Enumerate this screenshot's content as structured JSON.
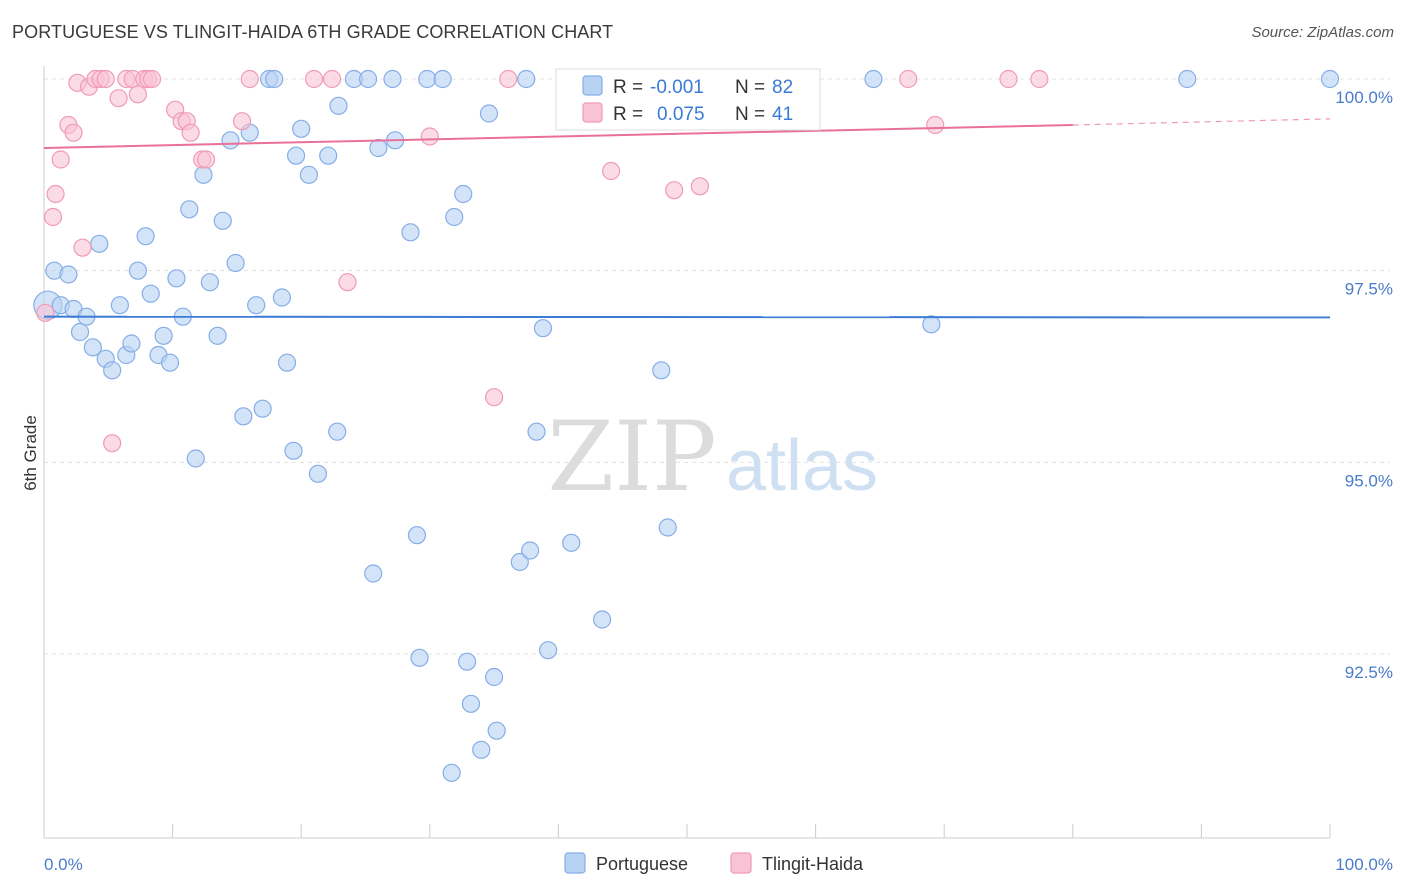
{
  "header": {
    "title": "PORTUGUESE VS TLINGIT-HAIDA 6TH GRADE CORRELATION CHART",
    "source": "Source: ZipAtlas.com"
  },
  "watermark": {
    "zip": "ZIP",
    "atlas": "atlas"
  },
  "colors": {
    "blue_fill": "#b8d2f3",
    "blue_stroke": "#86ade6",
    "blue_line": "#3a7bd5",
    "pink_fill": "#f8c3d4",
    "pink_stroke": "#f09ab6",
    "pink_line": "#e8709a",
    "grid": "#e3e3e3",
    "axis_label": "#4a7cc9"
  },
  "legend": {
    "rows": [
      {
        "r_label": "R =",
        "r_value": "-0.001",
        "n_label": "N =",
        "n_value": "82"
      },
      {
        "r_label": "R =",
        "r_value": "0.075",
        "n_label": "N =",
        "n_value": "41"
      }
    ]
  },
  "chart_data": {
    "type": "scatter",
    "title": "PORTUGUESE VS TLINGIT-HAIDA 6TH GRADE CORRELATION CHART",
    "ylabel": "6th Grade",
    "xlabel": "",
    "xlim": [
      0,
      100
    ],
    "ylim": [
      90.2,
      100.8
    ],
    "x_tick_labels": [
      "0.0%",
      "100.0%"
    ],
    "y_ticks": [
      {
        "value": 100.0,
        "label": "100.0%"
      },
      {
        "value": 97.5,
        "label": "97.5%"
      },
      {
        "value": 95.0,
        "label": "95.0%"
      },
      {
        "value": 92.5,
        "label": "92.5%"
      }
    ],
    "grid": true,
    "legend_position": "top-center",
    "series": [
      {
        "name": "Portuguese",
        "color": "#b8d2f3",
        "r": -0.001,
        "n": 82,
        "trend": {
          "x": [
            0,
            100
          ],
          "y": [
            96.9,
            96.89
          ]
        },
        "points": [
          [
            0.3,
            97.05
          ],
          [
            0.8,
            97.5
          ],
          [
            1.3,
            97.05
          ],
          [
            1.9,
            97.45
          ],
          [
            2.3,
            97.0
          ],
          [
            2.8,
            96.7
          ],
          [
            3.3,
            96.9
          ],
          [
            3.8,
            96.5
          ],
          [
            4.3,
            97.85
          ],
          [
            4.8,
            96.35
          ],
          [
            5.3,
            96.2
          ],
          [
            5.9,
            97.05
          ],
          [
            6.4,
            96.4
          ],
          [
            6.8,
            96.55
          ],
          [
            7.3,
            97.5
          ],
          [
            7.9,
            97.95
          ],
          [
            8.3,
            97.2
          ],
          [
            8.9,
            96.4
          ],
          [
            9.3,
            96.65
          ],
          [
            9.8,
            96.3
          ],
          [
            10.3,
            97.4
          ],
          [
            10.8,
            96.9
          ],
          [
            11.3,
            98.3
          ],
          [
            11.8,
            95.05
          ],
          [
            12.4,
            98.75
          ],
          [
            12.9,
            97.35
          ],
          [
            13.5,
            96.65
          ],
          [
            13.9,
            98.15
          ],
          [
            14.5,
            99.2
          ],
          [
            14.9,
            97.6
          ],
          [
            15.5,
            95.6
          ],
          [
            16.0,
            99.3
          ],
          [
            16.5,
            97.05
          ],
          [
            17.0,
            95.7
          ],
          [
            17.5,
            100.0
          ],
          [
            17.9,
            100.0
          ],
          [
            18.5,
            97.15
          ],
          [
            18.9,
            96.3
          ],
          [
            19.4,
            95.15
          ],
          [
            19.6,
            99.0
          ],
          [
            20.0,
            99.35
          ],
          [
            20.6,
            98.75
          ],
          [
            21.3,
            94.85
          ],
          [
            22.1,
            99.0
          ],
          [
            22.8,
            95.4
          ],
          [
            22.9,
            99.65
          ],
          [
            24.1,
            100.0
          ],
          [
            25.2,
            100.0
          ],
          [
            25.6,
            93.55
          ],
          [
            26.0,
            99.1
          ],
          [
            27.1,
            100.0
          ],
          [
            27.3,
            99.2
          ],
          [
            28.5,
            98.0
          ],
          [
            29.0,
            94.05
          ],
          [
            29.2,
            92.45
          ],
          [
            29.8,
            100.0
          ],
          [
            31.0,
            100.0
          ],
          [
            31.7,
            90.95
          ],
          [
            31.9,
            98.2
          ],
          [
            32.6,
            98.5
          ],
          [
            32.9,
            92.4
          ],
          [
            33.2,
            91.85
          ],
          [
            34.0,
            91.25
          ],
          [
            34.6,
            99.55
          ],
          [
            35.0,
            92.2
          ],
          [
            35.2,
            91.5
          ],
          [
            37.0,
            93.7
          ],
          [
            37.5,
            100.0
          ],
          [
            37.8,
            93.85
          ],
          [
            38.3,
            95.4
          ],
          [
            38.8,
            96.75
          ],
          [
            39.2,
            92.55
          ],
          [
            41.0,
            93.95
          ],
          [
            43.4,
            92.95
          ],
          [
            46.0,
            100.0
          ],
          [
            48.0,
            96.2
          ],
          [
            48.5,
            94.15
          ],
          [
            51.0,
            100.0
          ],
          [
            64.5,
            100.0
          ],
          [
            69.0,
            96.8
          ],
          [
            88.9,
            100.0
          ],
          [
            100.0,
            100.0
          ]
        ]
      },
      {
        "name": "Tlingit-Haida",
        "color": "#f8c3d4",
        "r": 0.075,
        "n": 41,
        "trend": {
          "x": [
            0,
            80
          ],
          "y": [
            99.1,
            99.4
          ],
          "dashed_to": [
            100,
            99.48
          ]
        },
        "points": [
          [
            0.1,
            96.95
          ],
          [
            0.7,
            98.2
          ],
          [
            0.9,
            98.5
          ],
          [
            1.3,
            98.95
          ],
          [
            1.9,
            99.4
          ],
          [
            2.3,
            99.3
          ],
          [
            2.6,
            99.95
          ],
          [
            3.0,
            97.8
          ],
          [
            3.5,
            99.9
          ],
          [
            4.0,
            100.0
          ],
          [
            4.4,
            100.0
          ],
          [
            4.8,
            100.0
          ],
          [
            5.3,
            95.25
          ],
          [
            5.8,
            99.75
          ],
          [
            6.4,
            100.0
          ],
          [
            6.9,
            100.0
          ],
          [
            7.3,
            99.8
          ],
          [
            7.8,
            100.0
          ],
          [
            8.1,
            100.0
          ],
          [
            8.4,
            100.0
          ],
          [
            10.2,
            99.6
          ],
          [
            10.7,
            99.45
          ],
          [
            11.1,
            99.45
          ],
          [
            11.4,
            99.3
          ],
          [
            12.3,
            98.95
          ],
          [
            12.6,
            98.95
          ],
          [
            15.4,
            99.45
          ],
          [
            16.0,
            100.0
          ],
          [
            21.0,
            100.0
          ],
          [
            22.4,
            100.0
          ],
          [
            23.6,
            97.35
          ],
          [
            30.0,
            99.25
          ],
          [
            35.0,
            95.85
          ],
          [
            36.1,
            100.0
          ],
          [
            44.1,
            98.8
          ],
          [
            49.0,
            98.55
          ],
          [
            51.0,
            98.6
          ],
          [
            67.2,
            100.0
          ],
          [
            69.3,
            99.4
          ],
          [
            75.0,
            100.0
          ],
          [
            77.4,
            100.0
          ]
        ]
      }
    ]
  }
}
